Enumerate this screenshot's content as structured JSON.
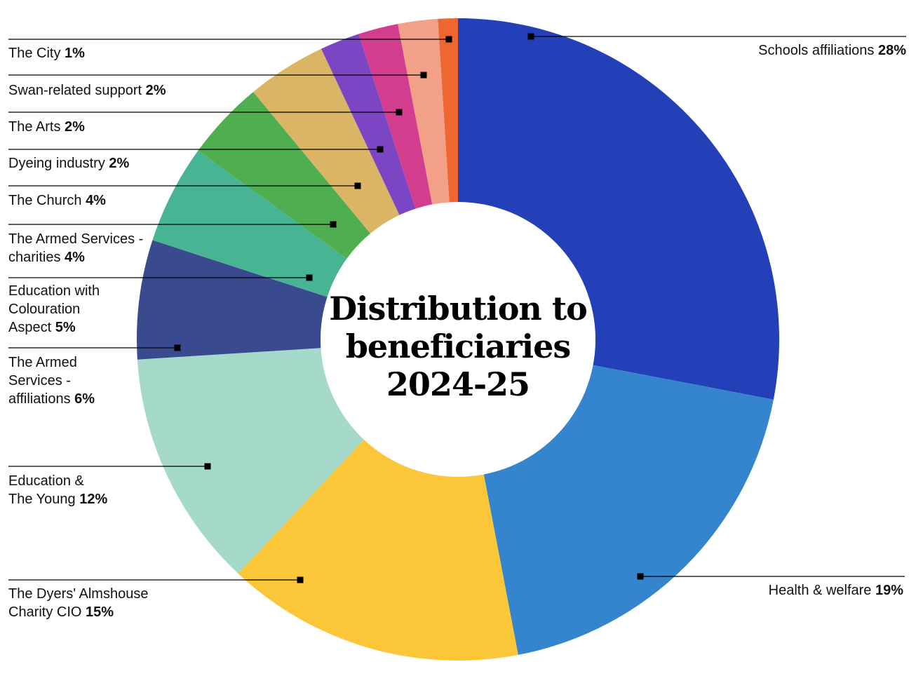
{
  "chart_data": {
    "type": "pie",
    "style": "donut",
    "title_lines": [
      "Distribution to",
      "beneficiaries",
      "2024-25"
    ],
    "slices": [
      {
        "name": "Schools affiliations",
        "lines": [
          "Schools affiliations"
        ],
        "value": 28,
        "pct_label": "28%",
        "color": "#2340B8",
        "label_side": "right"
      },
      {
        "name": "Health & welfare",
        "lines": [
          "Health & welfare"
        ],
        "value": 19,
        "pct_label": "19%",
        "color": "#3585CE",
        "label_side": "right"
      },
      {
        "name": "The Dyers' Almshouse Charity CIO",
        "lines": [
          "The Dyers' Almshouse",
          "Charity CIO"
        ],
        "value": 15,
        "pct_label": "15%",
        "color": "#FBC637",
        "label_side": "left"
      },
      {
        "name": "Education & The Young",
        "lines": [
          "Education &",
          "The Young"
        ],
        "value": 12,
        "pct_label": "12%",
        "color": "#A5DACB",
        "label_side": "left"
      },
      {
        "name": "The Armed Services - affiliations",
        "lines": [
          "The Armed",
          "Services -",
          "affiliations"
        ],
        "value": 6,
        "pct_label": "6%",
        "color": "#3A4A8E",
        "label_side": "left"
      },
      {
        "name": "Education with Colouration Aspect",
        "lines": [
          "Education with",
          "Colouration",
          "Aspect"
        ],
        "value": 5,
        "pct_label": "5%",
        "color": "#47B594",
        "label_side": "left"
      },
      {
        "name": "The Armed Services - charities",
        "lines": [
          "The Armed Services -",
          "charities"
        ],
        "value": 4,
        "pct_label": "4%",
        "color": "#4FAF50",
        "label_side": "left"
      },
      {
        "name": "The Church",
        "lines": [
          "The Church"
        ],
        "value": 4,
        "pct_label": "4%",
        "color": "#DAB565",
        "label_side": "left"
      },
      {
        "name": "Dyeing industry",
        "lines": [
          "Dyeing industry"
        ],
        "value": 2,
        "pct_label": "2%",
        "color": "#7C45C4",
        "label_side": "left"
      },
      {
        "name": "The Arts",
        "lines": [
          "The Arts"
        ],
        "value": 2,
        "pct_label": "2%",
        "color": "#D23D8E",
        "label_side": "left"
      },
      {
        "name": "Swan-related support",
        "lines": [
          "Swan-related support"
        ],
        "value": 2,
        "pct_label": "2%",
        "color": "#F3A088",
        "label_side": "left"
      },
      {
        "name": "The City",
        "lines": [
          "The City"
        ],
        "value": 1,
        "pct_label": "1%",
        "color": "#EE6630",
        "label_side": "left"
      }
    ]
  }
}
